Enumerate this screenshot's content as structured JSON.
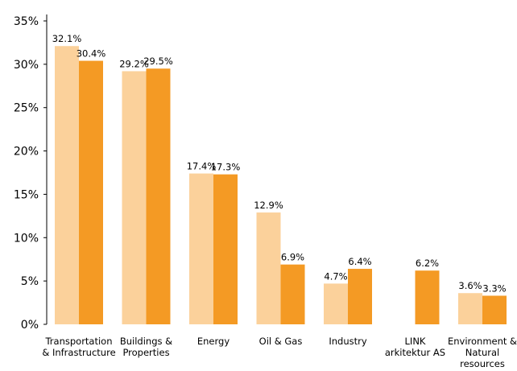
{
  "chart_data": {
    "type": "bar",
    "categories": [
      [
        "Transportation",
        "& Infrastructure"
      ],
      [
        "Buildings &",
        "Properties"
      ],
      [
        "Energy"
      ],
      [
        "Oil & Gas"
      ],
      [
        "Industry"
      ],
      [
        "LINK",
        "arkitektur AS"
      ],
      [
        "Environment &",
        "Natural",
        "resources"
      ]
    ],
    "series": [
      {
        "values": [
          32.1,
          29.2,
          17.4,
          12.9,
          4.7,
          null,
          3.6
        ],
        "labels": [
          "32.1%",
          "29.2%",
          "17.4%",
          "12.9%",
          "4.7%",
          "",
          "3.6%"
        ],
        "color": "#fbd19b"
      },
      {
        "values": [
          30.4,
          29.5,
          17.3,
          6.9,
          6.4,
          6.2,
          3.3
        ],
        "labels": [
          "30.4%",
          "29.5%",
          "17.3%",
          "6.9%",
          "6.4%",
          "6.2%",
          "3.3%"
        ],
        "color": "#f49a24"
      }
    ],
    "y_ticks": [
      "0%",
      "5%",
      "10%",
      "15%",
      "20%",
      "25%",
      "30%",
      "35%"
    ],
    "ylim": [
      0,
      35
    ],
    "grid": false,
    "legend": false,
    "axis_color": "#000000"
  }
}
